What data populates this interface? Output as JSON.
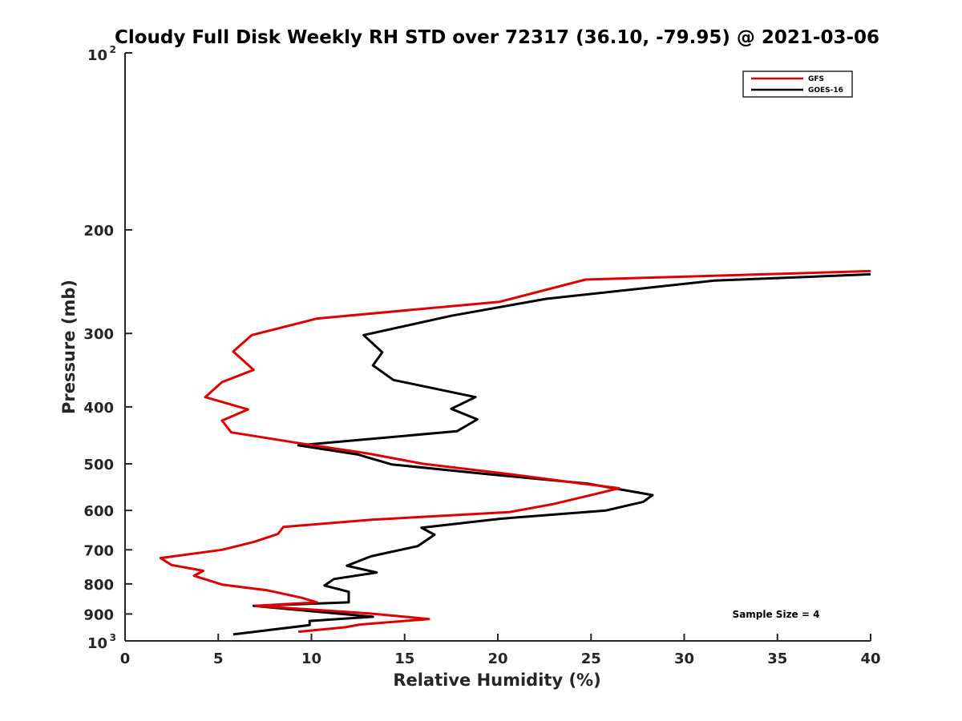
{
  "chart_data": {
    "type": "line",
    "title": "Cloudy Full Disk Weekly RH STD over 72317 (36.10, -79.95) @ 2021-03-06",
    "xlabel": "Relative Humidity (%)",
    "ylabel": "Pressure (mb)",
    "xlim": [
      0,
      40
    ],
    "ylim": [
      1000,
      100
    ],
    "yscale": "log",
    "grid": false,
    "legend_position": "top-right",
    "x_ticks": [
      "0",
      "5",
      "10",
      "15",
      "20",
      "25",
      "30",
      "35",
      "40"
    ],
    "y_ticks": [
      {
        "value": 100,
        "base": "10",
        "exp": "2"
      },
      {
        "value": 200,
        "label": "200"
      },
      {
        "value": 300,
        "label": "300"
      },
      {
        "value": 400,
        "label": "400"
      },
      {
        "value": 500,
        "label": "500"
      },
      {
        "value": 600,
        "label": "600"
      },
      {
        "value": 700,
        "label": "700"
      },
      {
        "value": 800,
        "label": "800"
      },
      {
        "value": 900,
        "label": "900"
      },
      {
        "value": 1000,
        "base": "10",
        "exp": "3"
      }
    ],
    "annotation": "Sample Size = 4",
    "series": [
      {
        "name": "GFS",
        "color": "#e00000",
        "points": [
          [
            40.0,
            235
          ],
          [
            24.7,
            243
          ],
          [
            20.1,
            265
          ],
          [
            10.3,
            283
          ],
          [
            6.8,
            302
          ],
          [
            5.8,
            322
          ],
          [
            6.9,
            346
          ],
          [
            5.2,
            363
          ],
          [
            4.3,
            385
          ],
          [
            6.6,
            404
          ],
          [
            5.2,
            422
          ],
          [
            5.7,
            442
          ],
          [
            9.5,
            462
          ],
          [
            13.0,
            480
          ],
          [
            16.0,
            500
          ],
          [
            20.5,
            520
          ],
          [
            24.5,
            540
          ],
          [
            26.5,
            550
          ],
          [
            25.5,
            560
          ],
          [
            23.0,
            585
          ],
          [
            20.6,
            604
          ],
          [
            13.3,
            622
          ],
          [
            8.5,
            640
          ],
          [
            8.2,
            658
          ],
          [
            6.9,
            679
          ],
          [
            5.2,
            700
          ],
          [
            1.9,
            723
          ],
          [
            2.5,
            743
          ],
          [
            4.2,
            760
          ],
          [
            3.7,
            775
          ],
          [
            5.2,
            802
          ],
          [
            7.6,
            820
          ],
          [
            9.5,
            845
          ],
          [
            10.3,
            860
          ],
          [
            7.0,
            872
          ],
          [
            13.1,
            898
          ],
          [
            16.3,
            918
          ],
          [
            12.6,
            938
          ],
          [
            11.8,
            948
          ],
          [
            9.3,
            965
          ]
        ]
      },
      {
        "name": "GOES-16",
        "color": "#000000",
        "points": [
          [
            40.0,
            238
          ],
          [
            31.6,
            244
          ],
          [
            22.6,
            262
          ],
          [
            17.5,
            280
          ],
          [
            12.8,
            302
          ],
          [
            13.8,
            323
          ],
          [
            13.3,
            340
          ],
          [
            14.4,
            360
          ],
          [
            18.8,
            385
          ],
          [
            17.5,
            403
          ],
          [
            18.9,
            420
          ],
          [
            17.8,
            440
          ],
          [
            9.3,
            465
          ],
          [
            12.5,
            482
          ],
          [
            14.3,
            501
          ],
          [
            19.3,
            520
          ],
          [
            24.8,
            540
          ],
          [
            28.3,
            565
          ],
          [
            27.8,
            580
          ],
          [
            25.8,
            600
          ],
          [
            20.1,
            620
          ],
          [
            15.9,
            642
          ],
          [
            16.6,
            660
          ],
          [
            15.7,
            690
          ],
          [
            13.2,
            718
          ],
          [
            11.9,
            745
          ],
          [
            13.5,
            765
          ],
          [
            11.2,
            785
          ],
          [
            10.7,
            805
          ],
          [
            12.0,
            825
          ],
          [
            12.0,
            860
          ],
          [
            6.9,
            872
          ],
          [
            13.3,
            910
          ],
          [
            9.9,
            925
          ],
          [
            9.9,
            940
          ],
          [
            5.8,
            975
          ]
        ]
      }
    ]
  }
}
